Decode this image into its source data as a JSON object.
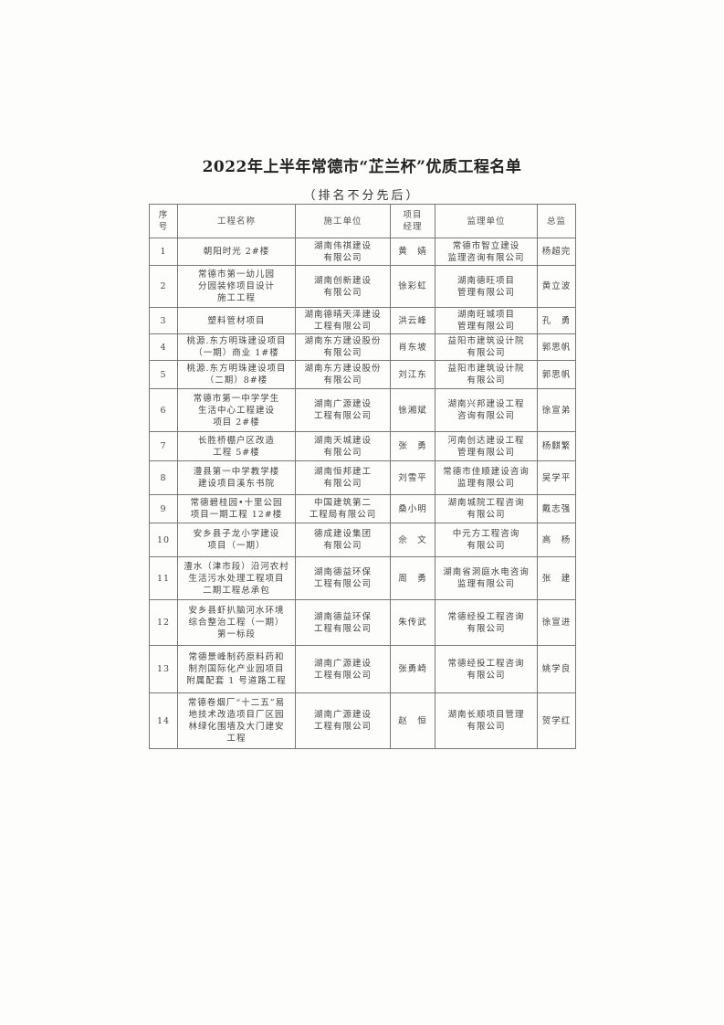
{
  "title": "2022年上半年常德市“芷兰杯”优质工程名单",
  "subtitle": "（排名不分先后）",
  "columns": [
    "序\n号",
    "工程名称",
    "施工单位",
    "项目\n经理",
    "监理单位",
    "总监"
  ],
  "rows": [
    [
      "1",
      "朝阳时光 2#楼",
      "湖南伟祺建设\n有限公司",
      "黄　婧",
      "常德市智立建设\n监理咨询有限公司",
      "杨超完"
    ],
    [
      "2",
      "常德市第一幼儿园\n分园装修项目设计\n施工工程",
      "湖南创新建设\n有限公司",
      "徐彩虹",
      "湖南德旺项目\n管理有限公司",
      "黄立波"
    ],
    [
      "3",
      "塑料管材项目",
      "湖南德晴天泽建设\n工程有限公司",
      "洪云峰",
      "湖南旺城项目\n管理有限公司",
      "孔　勇"
    ],
    [
      "4",
      "桃源.东方明珠建设项目\n（一期）商业 1#楼",
      "湖南东方建设股份\n有限公司",
      "肖东坡",
      "益阳市建筑设计院\n有限公司",
      "郭思帆"
    ],
    [
      "5",
      "桃源.东方明珠建设项目\n（二期）8#楼",
      "湖南东方建设股份\n有限公司",
      "刘江东",
      "益阳市建筑设计院\n有限公司",
      "郭思帆"
    ],
    [
      "6",
      "常德市第一中学学生\n生活中心工程建设\n项目 2#楼",
      "湖南广源建设\n工程有限公司",
      "徐湘斌",
      "湖南兴邦建设工程\n咨询有限公司",
      "徐宣弟"
    ],
    [
      "7",
      "长胜桥棚户区改造\n工程 5#楼",
      "湖南天城建设\n有限公司",
      "张　勇",
      "河南创达建设工程\n管理有限公司",
      "杨麒繁"
    ],
    [
      "8",
      "澧县第一中学教学楼\n建设项目溪东书院",
      "湖南恒邦建工\n有限公司",
      "刘雪平",
      "常德市佳顺建设咨询\n监理有限公司",
      "吴学平"
    ],
    [
      "9",
      "常德碧桂园•十里公园\n项目一期工程 12#楼",
      "中国建筑第二\n工程局有限公司",
      "桑小明",
      "湖南城院工程咨询\n有限公司",
      "戴志强"
    ],
    [
      "10",
      "安乡县子龙小学建设\n项目（一期）",
      "德成建设集团\n有限公司",
      "佘　文",
      "中元方工程咨询\n有限公司",
      "高　杨"
    ],
    [
      "11",
      "澧水（津市段）沿河农村\n生活污水处理工程项目\n二期工程总承包",
      "湖南德益环保\n工程有限公司",
      "周　勇",
      "湖南省洞庭水电咨询\n监理有限公司",
      "张　建"
    ],
    [
      "12",
      "安乡县虾扒脑河水环境\n综合整治工程（一期）\n第一标段",
      "湖南德益环保\n工程有限公司",
      "朱传武",
      "常德经投工程咨询\n有限公司",
      "徐宣进"
    ],
    [
      "13",
      "常德景峰制药原料药和\n制剂国际化产业园项目\n附属配套 1 号道路工程",
      "湖南广源建设\n工程有限公司",
      "张勇崎",
      "常德经投工程咨询\n有限公司",
      "姚学良"
    ],
    [
      "14",
      "常德卷烟厂“十二五”易\n地技术改造项目厂区园\n林绿化围墙及大门建安\n工程",
      "湖南广源建设\n工程有限公司",
      "赵　恒",
      "湖南长顺项目管理\n有限公司",
      "贺学红"
    ]
  ]
}
